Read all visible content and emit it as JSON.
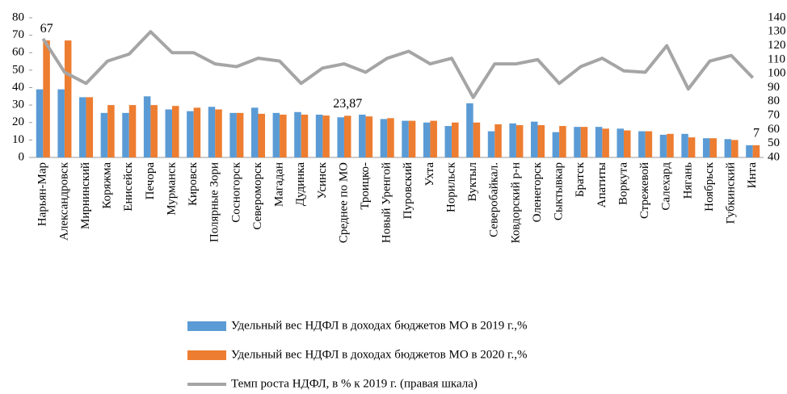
{
  "chart_data": {
    "type": "bar_line",
    "categories": [
      "Нарьян-Мар",
      "Александровск",
      "Мирнинский",
      "Коряжма",
      "Енисейск",
      "Печора",
      "Мурманск",
      "Кировск",
      "Полярные Зори",
      "Сосногорск",
      "Североморск",
      "Магадан",
      "Дудинка",
      "Усинск",
      "Среднее по МО",
      "Троицко-",
      "Новый Уренгой",
      "Пуровский",
      "Ухта",
      "Норильск",
      "Вуктыл",
      "Северобайкал.",
      "Ковдорский р-н",
      "Оленегорск",
      "Сыктывкар",
      "Братск",
      "Апатиты",
      "Воркута",
      "Стрежевой",
      "Салехард",
      "Нягань",
      "Ноябрьск",
      "Губкинский",
      "Инта"
    ],
    "series": [
      {
        "name": "Удельный вес НДФЛ в доходах бюджетов МО в 2019 г.,%",
        "type": "bar",
        "color": "#5b9bd5",
        "values": [
          39,
          39,
          34.5,
          25.5,
          25.5,
          35,
          27.5,
          26.5,
          29,
          25.5,
          28.5,
          25.5,
          26,
          24.5,
          23,
          24.5,
          22,
          21,
          20,
          18,
          31,
          15,
          19.5,
          20.5,
          14.5,
          17.5,
          17.5,
          16.5,
          15,
          13,
          13.5,
          11,
          10.5,
          7
        ]
      },
      {
        "name": "Удельный вес НДФЛ в доходах бюджетов МО в 2020 г.,%",
        "type": "bar",
        "color": "#ed7d31",
        "values": [
          67,
          67,
          34.5,
          30,
          30,
          30,
          29.5,
          28.5,
          27.5,
          25.5,
          25,
          24.5,
          24.5,
          24,
          23.87,
          23.5,
          22.5,
          21,
          21,
          20,
          20,
          19,
          18.5,
          18.5,
          18,
          17.5,
          16.5,
          15.5,
          15,
          13.5,
          11.5,
          11,
          10,
          7
        ],
        "value_labels": [
          "67",
          null,
          null,
          null,
          null,
          null,
          null,
          null,
          null,
          null,
          null,
          null,
          null,
          null,
          "23,87",
          null,
          null,
          null,
          null,
          null,
          null,
          null,
          null,
          null,
          null,
          null,
          null,
          null,
          null,
          null,
          null,
          null,
          null,
          "7"
        ]
      },
      {
        "name": "Темп роста НДФЛ, в % к 2019 г. (правая шкала)",
        "type": "line",
        "axis": "y2",
        "color": "#a5a5a5",
        "values": [
          125,
          101,
          93,
          109,
          114,
          130,
          115,
          115,
          107,
          105,
          111,
          109,
          93,
          104,
          107,
          101,
          111,
          116,
          107,
          111,
          83,
          107,
          107,
          110,
          93,
          105,
          111,
          102,
          101,
          120,
          89,
          109,
          113,
          97
        ]
      }
    ],
    "ylim": [
      0,
      80
    ],
    "yticks": [
      0,
      10,
      20,
      30,
      40,
      50,
      60,
      70,
      80
    ],
    "y2lim": [
      40,
      140
    ],
    "y2ticks": [
      40,
      50,
      60,
      70,
      80,
      90,
      100,
      110,
      120,
      130,
      140
    ]
  }
}
